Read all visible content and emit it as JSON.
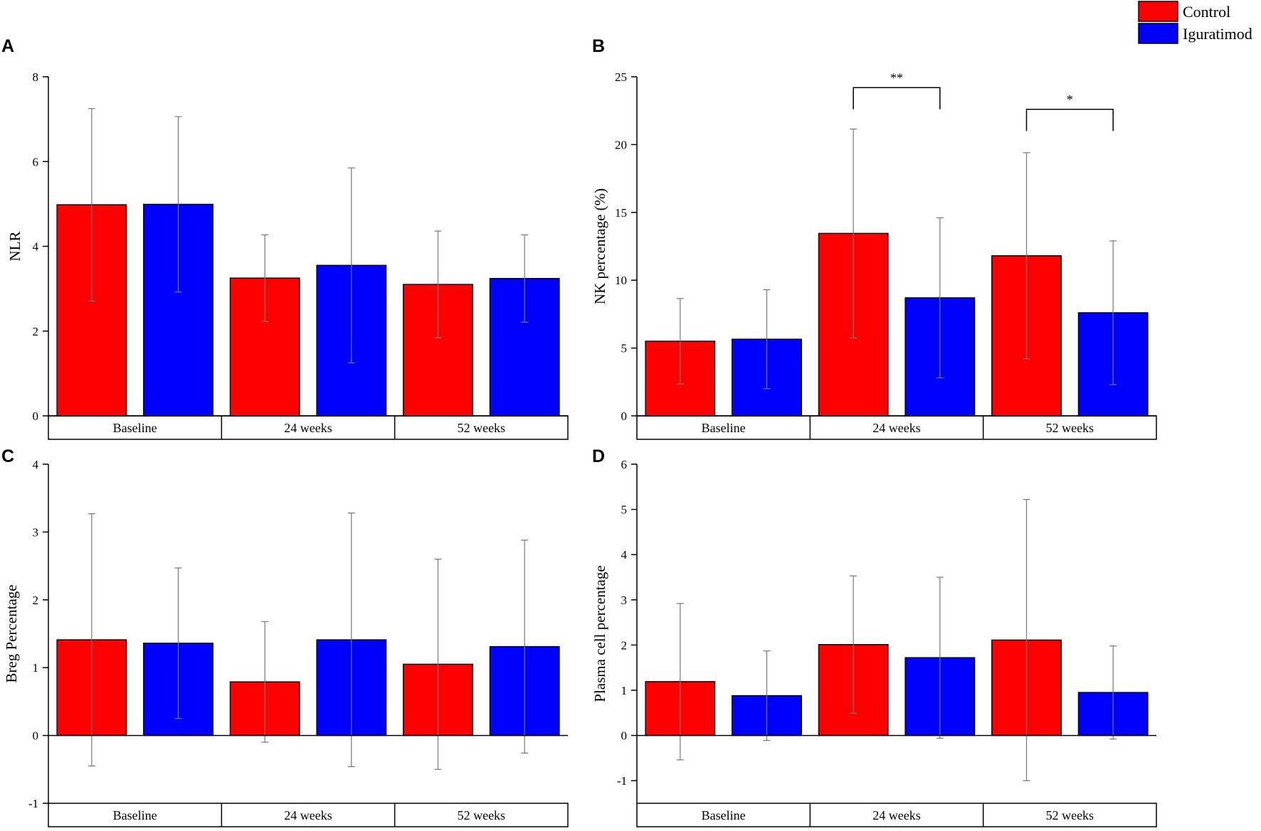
{
  "legend": [
    {
      "label": "Control",
      "color": "#ff0000"
    },
    {
      "label": "Iguratimod",
      "color": "#0000ff"
    }
  ],
  "chart_data": [
    {
      "panel": "A",
      "type": "bar",
      "ylabel": "NLR",
      "ylim": [
        0,
        8
      ],
      "ticks": [
        0,
        2,
        4,
        6,
        8
      ],
      "categories": [
        "Baseline",
        "24 weeks",
        "52 weeks"
      ],
      "series": [
        {
          "name": "Control",
          "values": [
            4.98,
            3.25,
            3.1
          ],
          "errors": [
            2.27,
            1.02,
            1.26
          ]
        },
        {
          "name": "Iguratimod",
          "values": [
            4.99,
            3.55,
            3.24
          ],
          "errors": [
            2.07,
            2.3,
            1.03
          ]
        }
      ],
      "annotations": []
    },
    {
      "panel": "B",
      "type": "bar",
      "ylabel": "NK percentage (%)",
      "ylim": [
        0,
        25
      ],
      "ticks": [
        0,
        5,
        10,
        15,
        20,
        25
      ],
      "categories": [
        "Baseline",
        "24 weeks",
        "52 weeks"
      ],
      "series": [
        {
          "name": "Control",
          "values": [
            5.5,
            13.45,
            11.8
          ],
          "errors": [
            3.15,
            7.7,
            7.6
          ]
        },
        {
          "name": "Iguratimod",
          "values": [
            5.65,
            8.7,
            7.6
          ],
          "errors": [
            3.65,
            5.9,
            5.3
          ]
        }
      ],
      "annotations": [
        {
          "label": "**",
          "group": 1,
          "y": 24.2
        },
        {
          "label": "*",
          "group": 2,
          "y": 22.6
        }
      ]
    },
    {
      "panel": "C",
      "type": "bar",
      "ylabel": "Breg Percentage",
      "ylim": [
        -1,
        4
      ],
      "ticks": [
        -1,
        0,
        1,
        2,
        3,
        4
      ],
      "categories": [
        "Baseline",
        "24 weeks",
        "52 weeks"
      ],
      "series": [
        {
          "name": "Control",
          "values": [
            1.41,
            0.79,
            1.05
          ],
          "errors": [
            1.86,
            0.89,
            1.55
          ]
        },
        {
          "name": "Iguratimod",
          "values": [
            1.36,
            1.41,
            1.31
          ],
          "errors": [
            1.11,
            1.87,
            1.57
          ]
        }
      ],
      "annotations": []
    },
    {
      "panel": "D",
      "type": "bar",
      "ylabel": "Plasma cell percentage",
      "ylim": [
        -1.5,
        6
      ],
      "ticks": [
        -1,
        0,
        1,
        2,
        3,
        4,
        5,
        6
      ],
      "categories": [
        "Baseline",
        "24 weeks",
        "52 weeks"
      ],
      "series": [
        {
          "name": "Control",
          "values": [
            1.19,
            2.01,
            2.11
          ],
          "errors": [
            1.73,
            1.52,
            3.11
          ]
        },
        {
          "name": "Iguratimod",
          "values": [
            0.88,
            1.72,
            0.95
          ],
          "errors": [
            0.99,
            1.78,
            1.03
          ]
        }
      ],
      "annotations": []
    }
  ]
}
